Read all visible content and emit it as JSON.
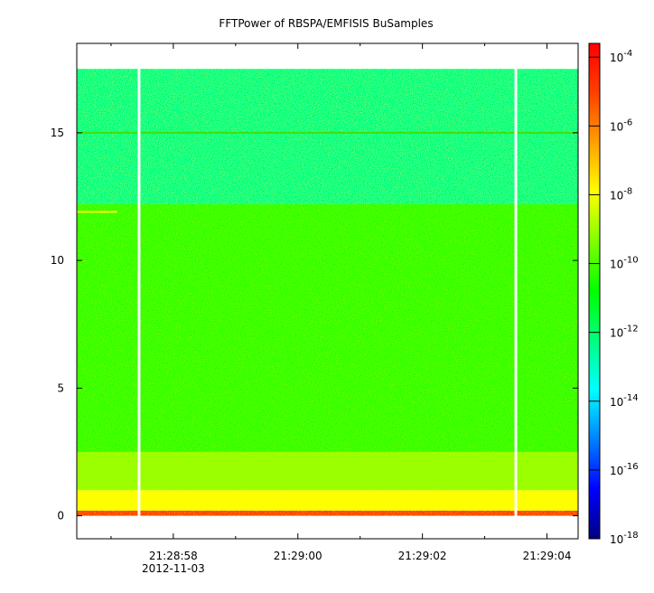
{
  "chart_data": {
    "type": "heatmap",
    "title": "FFTPower of RBSPA/EMFISIS  BuSamples",
    "x": {
      "ticks": [
        {
          "label": "21:28:58",
          "sublabel": "2012-11-03",
          "seconds": 58
        },
        {
          "label": "21:29:00",
          "seconds": 60
        },
        {
          "label": "21:29:02",
          "seconds": 62
        },
        {
          "label": "21:29:04",
          "seconds": 64
        }
      ],
      "range_seconds": [
        56.45,
        64.5
      ],
      "minor_tick_interval_seconds": 1
    },
    "y": {
      "ticks": [
        0,
        5,
        10,
        15
      ],
      "range": [
        -0.9,
        18.5
      ],
      "data_top": 17.5
    },
    "colorbar": {
      "scale": "log",
      "ticks": [
        {
          "base": "10",
          "exp": "-4"
        },
        {
          "base": "10",
          "exp": "-6"
        },
        {
          "base": "10",
          "exp": "-8"
        },
        {
          "base": "10",
          "exp": "-10"
        },
        {
          "base": "10",
          "exp": "-12"
        },
        {
          "base": "10",
          "exp": "-14"
        },
        {
          "base": "10",
          "exp": "-16"
        },
        {
          "base": "10",
          "exp": "-18"
        }
      ],
      "log_range": [
        -18,
        -3.6
      ],
      "colors": [
        "#000080",
        "#0000ff",
        "#0080ff",
        "#00ffff",
        "#00ff80",
        "#00ff00",
        "#80ff00",
        "#ffff00",
        "#ffa000",
        "#ff4000",
        "#ff0000"
      ]
    },
    "gaps_seconds": [
      57.45,
      63.5
    ],
    "bands": [
      {
        "y_from": 12.2,
        "y_to": 17.5,
        "level": "1e-13",
        "color": "#00ff80"
      },
      {
        "y_from": 2.5,
        "y_to": 12.2,
        "level": "1e-10",
        "color": "#33ff00"
      },
      {
        "y_from": 1.0,
        "y_to": 2.5,
        "level": "1e-9",
        "color": "#99ff00"
      },
      {
        "y_from": 0.2,
        "y_to": 1.0,
        "level": "1e-8",
        "color": "#ffff00"
      },
      {
        "y_from": 0.0,
        "y_to": 0.2,
        "level": "1e-5",
        "color": "#ff4000"
      }
    ],
    "lines": [
      {
        "y": 15.0,
        "color": "#40e000"
      },
      {
        "y": 11.9,
        "color": "#ffff00",
        "x_from_seconds": 56.45,
        "x_to_seconds": 57.1
      }
    ]
  }
}
